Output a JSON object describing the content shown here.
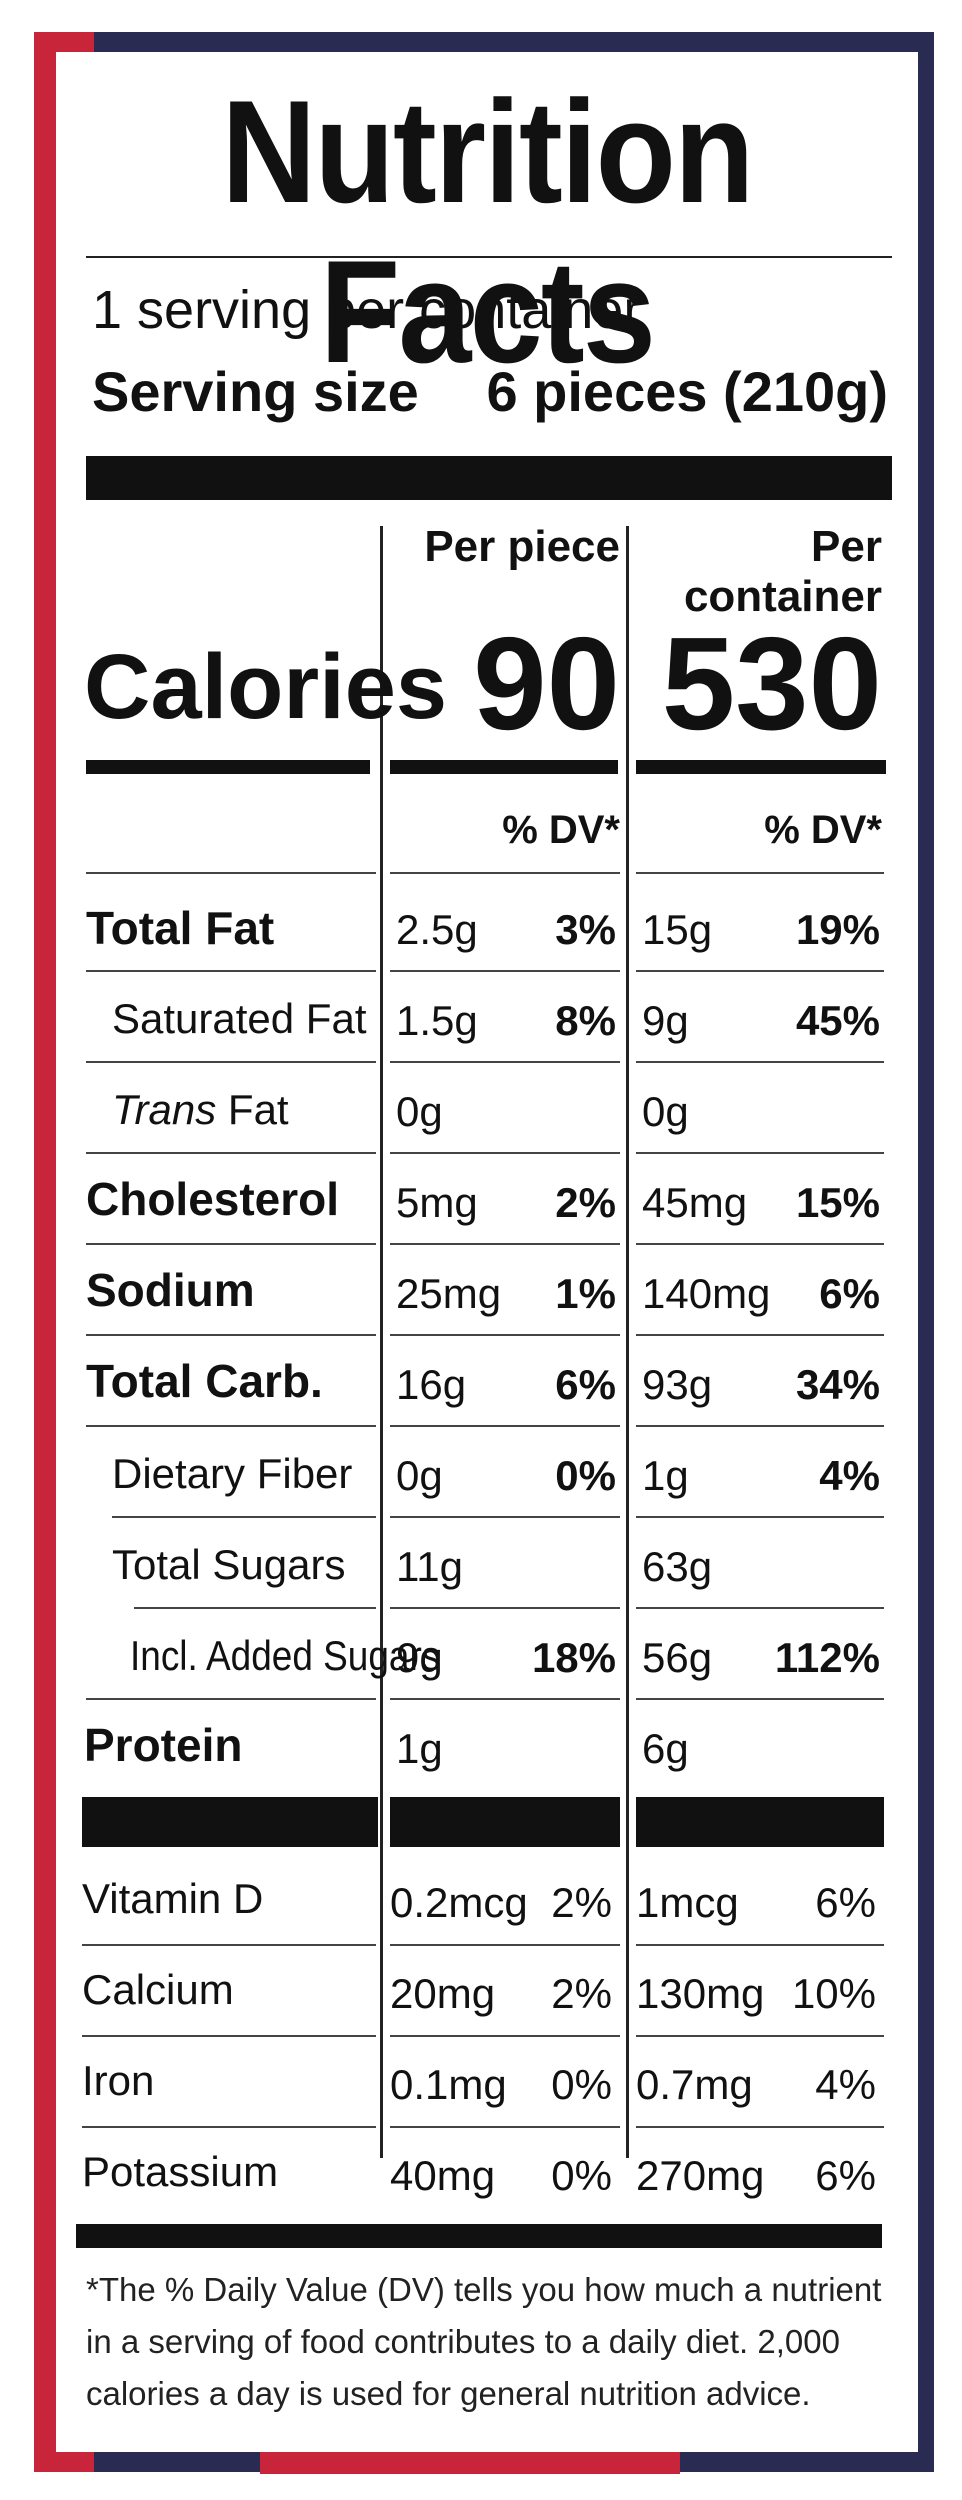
{
  "title": "Nutrition Facts",
  "servings_per_container": "1 serving per container",
  "serving_size_label": "Serving size",
  "serving_size_value": "6 pieces (210g)",
  "columns": {
    "per_piece": "Per piece",
    "per_container": "Per container"
  },
  "calories": {
    "label": "Calories",
    "per_piece": "90",
    "per_container": "530"
  },
  "dv_header": {
    "per_piece": "% DV*",
    "per_container": "% DV*"
  },
  "nutrients": [
    {
      "label": "Total Fat",
      "piece_amt": "2.5g",
      "piece_dv": "3%",
      "cont_amt": "15g",
      "cont_dv": "19%"
    },
    {
      "label": "Saturated Fat",
      "piece_amt": "1.5g",
      "piece_dv": "8%",
      "cont_amt": "9g",
      "cont_dv": "45%"
    },
    {
      "label_italic": "Trans",
      "label_rest": " Fat",
      "piece_amt": "0g",
      "piece_dv": "",
      "cont_amt": "0g",
      "cont_dv": ""
    },
    {
      "label": "Cholesterol",
      "piece_amt": "5mg",
      "piece_dv": "2%",
      "cont_amt": "45mg",
      "cont_dv": "15%"
    },
    {
      "label": "Sodium",
      "piece_amt": "25mg",
      "piece_dv": "1%",
      "cont_amt": "140mg",
      "cont_dv": "6%"
    },
    {
      "label": "Total Carb.",
      "piece_amt": "16g",
      "piece_dv": "6%",
      "cont_amt": "93g",
      "cont_dv": "34%"
    },
    {
      "label": "Dietary Fiber",
      "piece_amt": "0g",
      "piece_dv": "0%",
      "cont_amt": "1g",
      "cont_dv": "4%"
    },
    {
      "label": "Total Sugars",
      "piece_amt": "11g",
      "piece_dv": "",
      "cont_amt": "63g",
      "cont_dv": ""
    },
    {
      "label": "Incl. Added Sugars",
      "piece_amt": "9g",
      "piece_dv": "18%",
      "cont_amt": "56g",
      "cont_dv": "112%"
    },
    {
      "label": "Protein",
      "piece_amt": "1g",
      "piece_dv": "",
      "cont_amt": "6g",
      "cont_dv": ""
    }
  ],
  "vitamins": [
    {
      "label": "Vitamin D",
      "piece_amt": "0.2mcg",
      "piece_dv": "2%",
      "cont_amt": "1mcg",
      "cont_dv": "6%"
    },
    {
      "label": "Calcium",
      "piece_amt": "20mg",
      "piece_dv": "2%",
      "cont_amt": "130mg",
      "cont_dv": "10%"
    },
    {
      "label": "Iron",
      "piece_amt": "0.1mg",
      "piece_dv": "0%",
      "cont_amt": "0.7mg",
      "cont_dv": "4%"
    },
    {
      "label": "Potassium",
      "piece_amt": "40mg",
      "piece_dv": "0%",
      "cont_amt": "270mg",
      "cont_dv": "6%"
    }
  ],
  "footnote": "*The % Daily Value (DV) tells you how much a nutrient in a serving of food contributes to a daily diet. 2,000 calories a day is used for general nutrition advice.",
  "colors": {
    "package_navy": "#2a2b52",
    "package_red": "#c8243a",
    "label_black": "#111111"
  }
}
